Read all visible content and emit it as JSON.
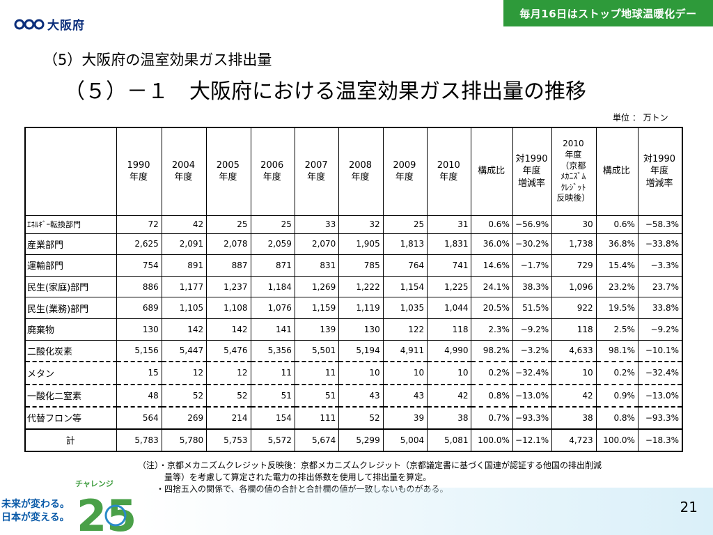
{
  "header": {
    "org_name": "大阪府",
    "banner": "毎月16日はストップ地球温暖化デー"
  },
  "titles": {
    "section": "（5）大阪府の温室効果ガス排出量",
    "subsection": "（５）－１　大阪府における温室効果ガス排出量の推移",
    "unit": "単位 ： 万トン"
  },
  "table": {
    "headers": {
      "y1990": [
        "1990",
        "年度"
      ],
      "y2004": [
        "2004",
        "年度"
      ],
      "y2005": [
        "2005",
        "年度"
      ],
      "y2006": [
        "2006",
        "年度"
      ],
      "y2007": [
        "2007",
        "年度"
      ],
      "y2008": [
        "2008",
        "年度"
      ],
      "y2009": [
        "2009",
        "年度"
      ],
      "y2010": [
        "2010",
        "年度"
      ],
      "share": "構成比",
      "vs1990": [
        "対1990",
        "年度",
        "増減率"
      ],
      "y2010_credit": [
        "2010",
        "年度",
        "（京都",
        "ﾒｶﾆｽﾞﾑ",
        "ｸﾚｼﾞｯﾄ",
        "反映後）"
      ],
      "share2": "構成比",
      "vs1990_2": [
        "対1990",
        "年度",
        "増減率"
      ]
    },
    "rows": [
      {
        "label": "ｴﾈﾙｷﾞｰ転換部門",
        "values": [
          "72",
          "42",
          "25",
          "25",
          "33",
          "32",
          "25",
          "31",
          "0.6%",
          "−56.9%",
          "30",
          "0.6%",
          "−58.3%"
        ]
      },
      {
        "label": "産業部門",
        "values": [
          "2,625",
          "2,091",
          "2,078",
          "2,059",
          "2,070",
          "1,905",
          "1,813",
          "1,831",
          "36.0%",
          "−30.2%",
          "1,738",
          "36.8%",
          "−33.8%"
        ]
      },
      {
        "label": "運輸部門",
        "values": [
          "754",
          "891",
          "887",
          "871",
          "831",
          "785",
          "764",
          "741",
          "14.6%",
          "−1.7%",
          "729",
          "15.4%",
          "−3.3%"
        ]
      },
      {
        "label": "民生(家庭)部門",
        "values": [
          "886",
          "1,177",
          "1,237",
          "1,184",
          "1,269",
          "1,222",
          "1,154",
          "1,225",
          "24.1%",
          "38.3%",
          "1,096",
          "23.2%",
          "23.7%"
        ]
      },
      {
        "label": "民生(業務)部門",
        "values": [
          "689",
          "1,105",
          "1,108",
          "1,076",
          "1,159",
          "1,119",
          "1,035",
          "1,044",
          "20.5%",
          "51.5%",
          "922",
          "19.5%",
          "33.8%"
        ]
      },
      {
        "label": "廃棄物",
        "values": [
          "130",
          "142",
          "142",
          "141",
          "139",
          "130",
          "122",
          "118",
          "2.3%",
          "−9.2%",
          "118",
          "2.5%",
          "−9.2%"
        ]
      },
      {
        "label": "二酸化炭素",
        "values": [
          "5,156",
          "5,447",
          "5,476",
          "5,356",
          "5,501",
          "5,194",
          "4,911",
          "4,990",
          "98.2%",
          "−3.2%",
          "4,633",
          "98.1%",
          "−10.1%"
        ]
      },
      {
        "label": "メタン",
        "values": [
          "15",
          "12",
          "12",
          "11",
          "11",
          "10",
          "10",
          "10",
          "0.2%",
          "−32.4%",
          "10",
          "0.2%",
          "−32.4%"
        ]
      },
      {
        "label": "一酸化二窒素",
        "values": [
          "48",
          "52",
          "52",
          "51",
          "51",
          "43",
          "43",
          "42",
          "0.8%",
          "−13.0%",
          "42",
          "0.9%",
          "−13.0%"
        ]
      },
      {
        "label": "代替フロン等",
        "values": [
          "564",
          "269",
          "214",
          "154",
          "111",
          "52",
          "39",
          "38",
          "0.7%",
          "−93.3%",
          "38",
          "0.8%",
          "−93.3%"
        ]
      },
      {
        "label": "計",
        "values": [
          "5,783",
          "5,780",
          "5,753",
          "5,572",
          "5,674",
          "5,299",
          "5,004",
          "5,081",
          "100.0%",
          "−12.1%",
          "4,723",
          "100.0%",
          "−18.3%"
        ]
      }
    ]
  },
  "notes": {
    "line1": "（注）・京都メカニズムクレジット反映後：京都メカニズムクレジット（京都議定書に基づく国連が認証する他国の排出削減",
    "line2": "量等）を考慮して算定された電力の排出係数を使用して排出量を算定。",
    "line3": "・四捨五入の関係で、各欄の値の合計と合計欄の値が一致しないものがある。"
  },
  "footer": {
    "challenge_title": "チャレンジ",
    "challenge_number": "25",
    "slogan_line1": "未来が変わる。",
    "slogan_line2": "日本が変える。",
    "page_number": "21"
  },
  "colors": {
    "banner_bg": "#2e9a3a",
    "logo_blue": "#0a2d7a",
    "slogan_blue": "#0a5aa8",
    "challenge_green": "#3a9a3a"
  }
}
